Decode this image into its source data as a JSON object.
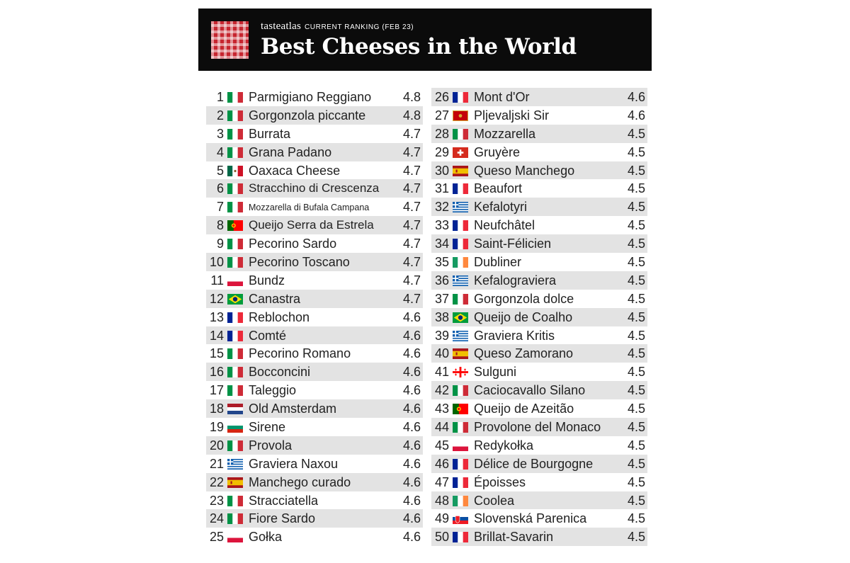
{
  "header": {
    "brand": "tasteatlas",
    "subtitle": "CURRENT RANKING (FEB 23)",
    "title": "Best Cheeses in the World",
    "logo_icon": "checkered-tablecloth-icon",
    "colors": {
      "banner": "#0b0b0b",
      "logo": "#c6252f",
      "row_shade": "#e3e3e3"
    }
  },
  "rankings": [
    {
      "rank": "1",
      "country": "Italy",
      "name": "Parmigiano Reggiano",
      "score": "4.8"
    },
    {
      "rank": "2",
      "country": "Italy",
      "name": "Gorgonzola piccante",
      "score": "4.8"
    },
    {
      "rank": "3",
      "country": "Italy",
      "name": "Burrata",
      "score": "4.7"
    },
    {
      "rank": "4",
      "country": "Italy",
      "name": "Grana Padano",
      "score": "4.7"
    },
    {
      "rank": "5",
      "country": "Mexico",
      "name": "Oaxaca Cheese",
      "score": "4.7"
    },
    {
      "rank": "6",
      "country": "Italy",
      "name": "Stracchino di Crescenza",
      "score": "4.7"
    },
    {
      "rank": "7",
      "country": "Italy",
      "name": "Mozzarella di Bufala Campana",
      "score": "4.7"
    },
    {
      "rank": "8",
      "country": "Portugal",
      "name": "Queijo Serra da Estrela",
      "score": "4.7"
    },
    {
      "rank": "9",
      "country": "Italy",
      "name": "Pecorino Sardo",
      "score": "4.7"
    },
    {
      "rank": "10",
      "country": "Italy",
      "name": "Pecorino Toscano",
      "score": "4.7"
    },
    {
      "rank": "11",
      "country": "Poland",
      "name": "Bundz",
      "score": "4.7"
    },
    {
      "rank": "12",
      "country": "Brazil",
      "name": "Canastra",
      "score": "4.7"
    },
    {
      "rank": "13",
      "country": "France",
      "name": "Reblochon",
      "score": "4.6"
    },
    {
      "rank": "14",
      "country": "France",
      "name": "Comté",
      "score": "4.6"
    },
    {
      "rank": "15",
      "country": "Italy",
      "name": "Pecorino Romano",
      "score": "4.6"
    },
    {
      "rank": "16",
      "country": "Italy",
      "name": "Bocconcini",
      "score": "4.6"
    },
    {
      "rank": "17",
      "country": "Italy",
      "name": "Taleggio",
      "score": "4.6"
    },
    {
      "rank": "18",
      "country": "Netherlands",
      "name": "Old Amsterdam",
      "score": "4.6"
    },
    {
      "rank": "19",
      "country": "Bulgaria",
      "name": "Sirene",
      "score": "4.6"
    },
    {
      "rank": "20",
      "country": "Italy",
      "name": "Provola",
      "score": "4.6"
    },
    {
      "rank": "21",
      "country": "Greece",
      "name": "Graviera Naxou",
      "score": "4.6"
    },
    {
      "rank": "22",
      "country": "Spain",
      "name": "Manchego curado",
      "score": "4.6"
    },
    {
      "rank": "23",
      "country": "Italy",
      "name": "Stracciatella",
      "score": "4.6"
    },
    {
      "rank": "24",
      "country": "Italy",
      "name": "Fiore Sardo",
      "score": "4.6"
    },
    {
      "rank": "25",
      "country": "Poland",
      "name": "Gołka",
      "score": "4.6"
    },
    {
      "rank": "26",
      "country": "France",
      "name": "Mont d'Or",
      "score": "4.6"
    },
    {
      "rank": "27",
      "country": "Montenegro",
      "name": "Pljevaljski Sir",
      "score": "4.6"
    },
    {
      "rank": "28",
      "country": "Italy",
      "name": "Mozzarella",
      "score": "4.5"
    },
    {
      "rank": "29",
      "country": "Switzerland",
      "name": "Gruyère",
      "score": "4.5"
    },
    {
      "rank": "30",
      "country": "Spain",
      "name": "Queso Manchego",
      "score": "4.5"
    },
    {
      "rank": "31",
      "country": "France",
      "name": "Beaufort",
      "score": "4.5"
    },
    {
      "rank": "32",
      "country": "Greece",
      "name": "Kefalotyri",
      "score": "4.5"
    },
    {
      "rank": "33",
      "country": "France",
      "name": "Neufchâtel",
      "score": "4.5"
    },
    {
      "rank": "34",
      "country": "France",
      "name": "Saint-Félicien",
      "score": "4.5"
    },
    {
      "rank": "35",
      "country": "Ireland",
      "name": "Dubliner",
      "score": "4.5"
    },
    {
      "rank": "36",
      "country": "Greece",
      "name": "Kefalograviera",
      "score": "4.5"
    },
    {
      "rank": "37",
      "country": "Italy",
      "name": "Gorgonzola dolce",
      "score": "4.5"
    },
    {
      "rank": "38",
      "country": "Brazil",
      "name": "Queijo de Coalho",
      "score": "4.5"
    },
    {
      "rank": "39",
      "country": "Greece",
      "name": "Graviera Kritis",
      "score": "4.5"
    },
    {
      "rank": "40",
      "country": "Spain",
      "name": "Queso Zamorano",
      "score": "4.5"
    },
    {
      "rank": "41",
      "country": "Georgia",
      "name": "Sulguni",
      "score": "4.5"
    },
    {
      "rank": "42",
      "country": "Italy",
      "name": "Caciocavallo Silano",
      "score": "4.5"
    },
    {
      "rank": "43",
      "country": "Portugal",
      "name": "Queijo de Azeitão",
      "score": "4.5"
    },
    {
      "rank": "44",
      "country": "Italy",
      "name": "Provolone del Monaco",
      "score": "4.5"
    },
    {
      "rank": "45",
      "country": "Poland",
      "name": "Redykołka",
      "score": "4.5"
    },
    {
      "rank": "46",
      "country": "France",
      "name": "Délice de Bourgogne",
      "score": "4.5"
    },
    {
      "rank": "47",
      "country": "France",
      "name": "Époisses",
      "score": "4.5"
    },
    {
      "rank": "48",
      "country": "Ireland",
      "name": "Coolea",
      "score": "4.5"
    },
    {
      "rank": "49",
      "country": "Slovakia",
      "name": "Slovenská Parenica",
      "score": "4.5"
    },
    {
      "rank": "50",
      "country": "France",
      "name": "Brillat-Savarin",
      "score": "4.5"
    }
  ]
}
